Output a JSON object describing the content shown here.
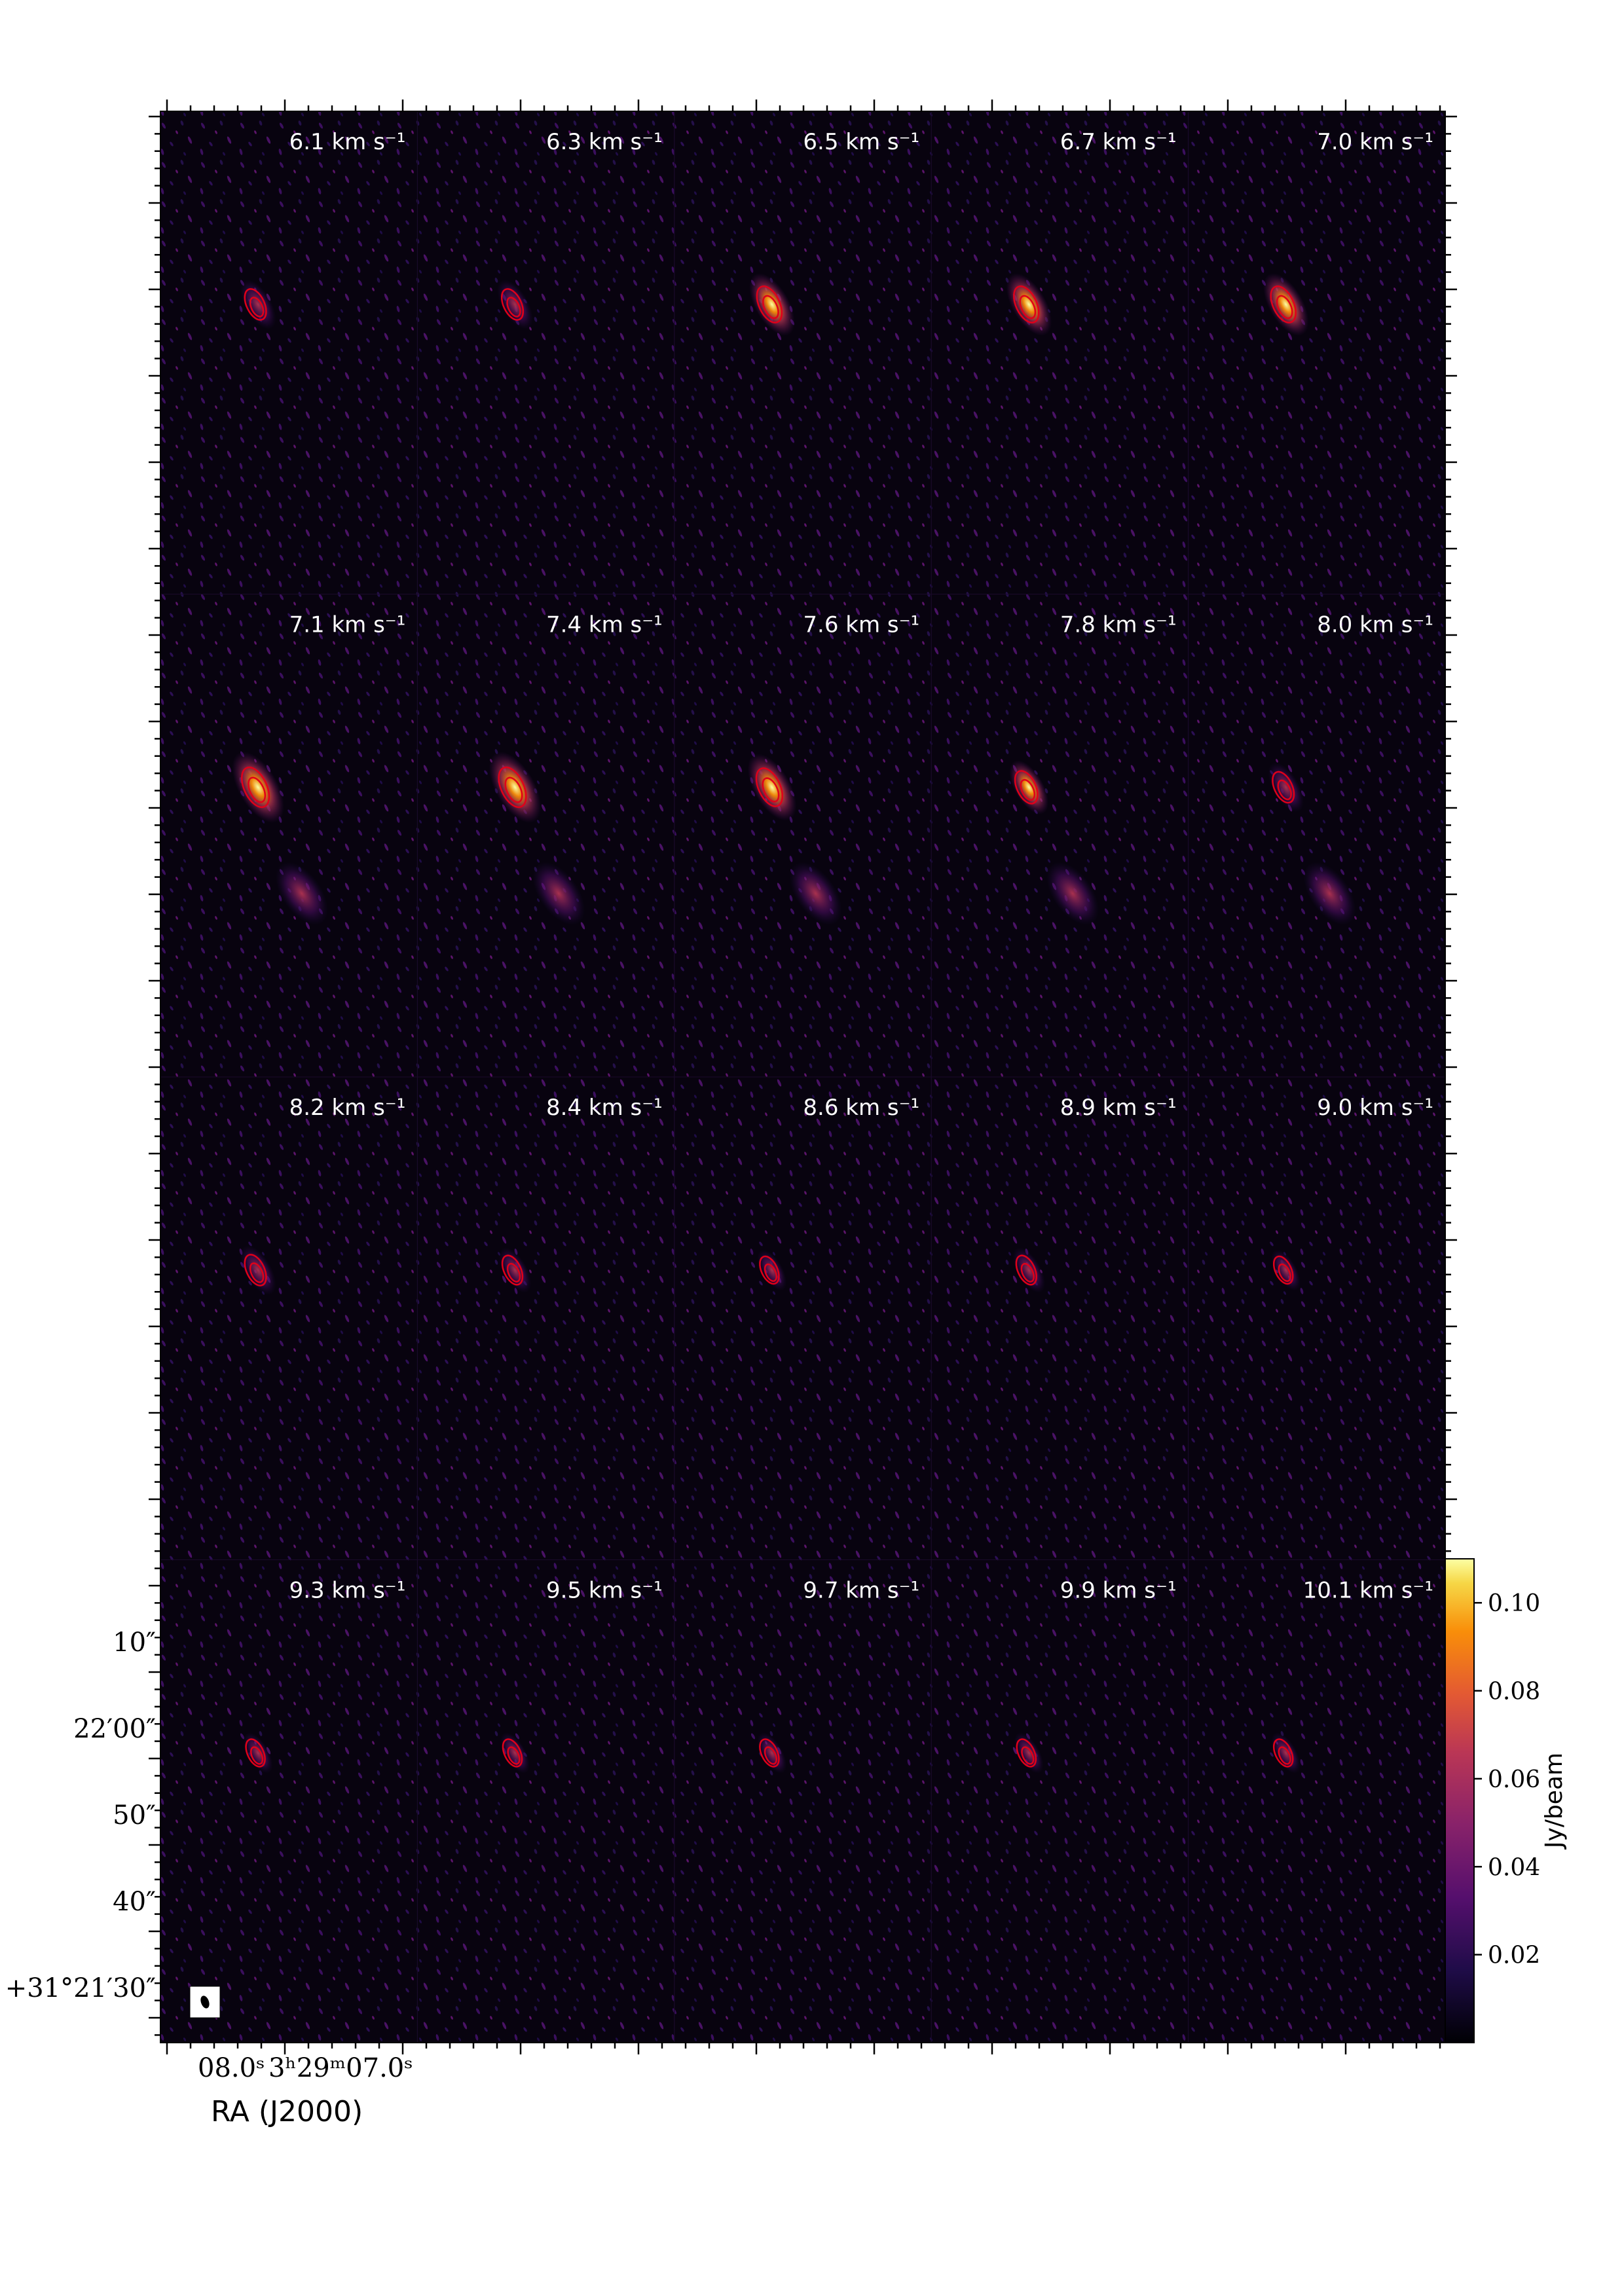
{
  "chart_data": {
    "type": "heatmap",
    "title": "",
    "layout": "channel-map grid, 4 rows x 5 columns",
    "colormap": "inferno",
    "contour_color": "#e0001a",
    "panels": [
      {
        "label": "6.1 km s⁻¹",
        "velocity": 6.1,
        "peak": 0.05
      },
      {
        "label": "6.3 km s⁻¹",
        "velocity": 6.3,
        "peak": 0.05
      },
      {
        "label": "6.5 km s⁻¹",
        "velocity": 6.5,
        "peak": 0.08
      },
      {
        "label": "6.7 km s⁻¹",
        "velocity": 6.7,
        "peak": 0.08
      },
      {
        "label": "7.0 km s⁻¹",
        "velocity": 7.0,
        "peak": 0.08
      },
      {
        "label": "7.1 km s⁻¹",
        "velocity": 7.1,
        "peak": 0.1
      },
      {
        "label": "7.4 km s⁻¹",
        "velocity": 7.4,
        "peak": 0.1
      },
      {
        "label": "7.6 km s⁻¹",
        "velocity": 7.6,
        "peak": 0.09
      },
      {
        "label": "7.8 km s⁻¹",
        "velocity": 7.8,
        "peak": 0.06
      },
      {
        "label": "8.0 km s⁻¹",
        "velocity": 8.0,
        "peak": 0.05
      },
      {
        "label": "8.2 km s⁻¹",
        "velocity": 8.2,
        "peak": 0.05
      },
      {
        "label": "8.4 km s⁻¹",
        "velocity": 8.4,
        "peak": 0.04
      },
      {
        "label": "8.6 km s⁻¹",
        "velocity": 8.6,
        "peak": 0.03
      },
      {
        "label": "8.9 km s⁻¹",
        "velocity": 8.9,
        "peak": 0.04
      },
      {
        "label": "9.0 km s⁻¹",
        "velocity": 9.0,
        "peak": 0.03
      },
      {
        "label": "9.3 km s⁻¹",
        "velocity": 9.3,
        "peak": 0.03
      },
      {
        "label": "9.5 km s⁻¹",
        "velocity": 9.5,
        "peak": 0.03
      },
      {
        "label": "9.7 km s⁻¹",
        "velocity": 9.7,
        "peak": 0.03
      },
      {
        "label": "9.9 km s⁻¹",
        "velocity": 9.9,
        "peak": 0.03
      },
      {
        "label": "10.1 km s⁻¹",
        "velocity": 10.1,
        "peak": 0.03
      }
    ],
    "xlabel": "RA (J2000)",
    "x_ticklabels": [
      "08.0ˢ",
      "3ʰ29ᵐ07.0ˢ"
    ],
    "y_ticklabels": [
      "10″",
      "22′00″",
      "50″",
      "40″",
      "+31°21′30″"
    ],
    "colorbar": {
      "label": "Jy/beam",
      "range": [
        0.0,
        0.11
      ],
      "ticks": [
        0.02,
        0.04,
        0.06,
        0.08,
        0.1
      ],
      "ticklabels": [
        "0.02",
        "0.04",
        "0.06",
        "0.08",
        "0.10"
      ]
    }
  }
}
